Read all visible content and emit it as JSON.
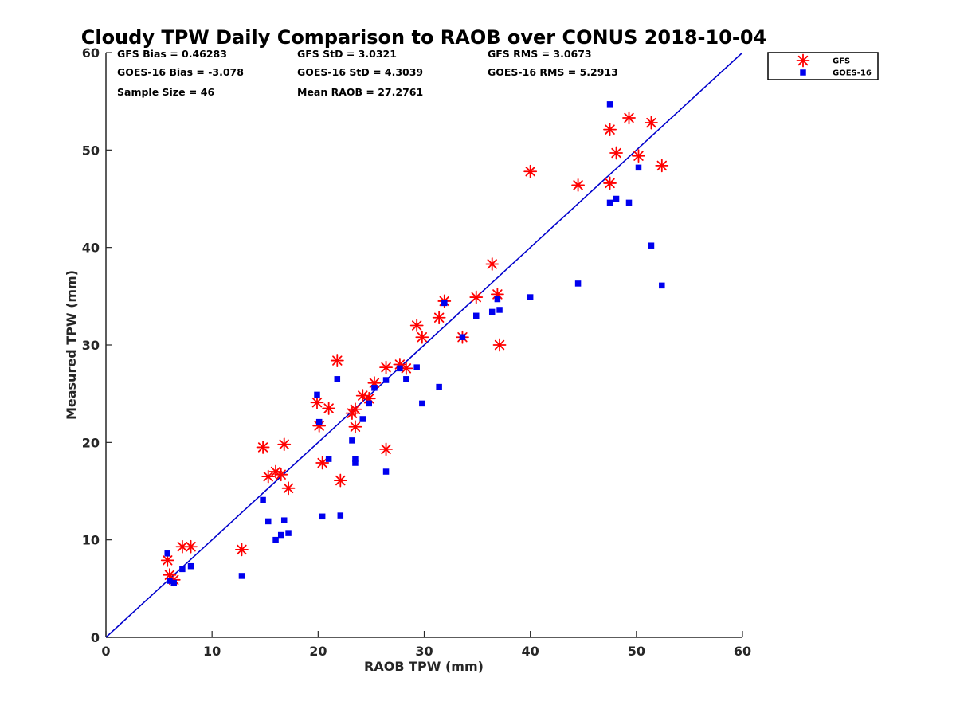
{
  "chart_data": {
    "type": "scatter",
    "title": "Cloudy TPW Daily Comparison to RAOB over CONUS 2018-10-04",
    "xlabel": "RAOB TPW (mm)",
    "ylabel": "Measured TPW (mm)",
    "xlim": [
      0,
      60
    ],
    "ylim": [
      0,
      60
    ],
    "xticks": [
      "0",
      "10",
      "20",
      "30",
      "40",
      "50",
      "60"
    ],
    "yticks": [
      "0",
      "10",
      "20",
      "30",
      "40",
      "50",
      "60"
    ],
    "grid": false,
    "legend_position": "top-right-outside",
    "stats": [
      [
        "GFS Bias = 0.46283",
        "GFS StD = 3.0321",
        "GFS RMS = 3.0673"
      ],
      [
        "GOES-16 Bias = -3.078",
        "GOES-16 StD = 4.3039",
        "GOES-16 RMS = 5.2913"
      ],
      [
        "Sample Size = 46",
        "Mean RAOB = 27.2761",
        ""
      ]
    ],
    "reference_line": {
      "x": [
        0,
        60
      ],
      "y": [
        0,
        60
      ],
      "color": "#0000cc"
    },
    "series": [
      {
        "name": "GFS",
        "marker": "asterisk",
        "color": "#ff0000",
        "x": [
          5.8,
          6.0,
          6.4,
          7.2,
          8.0,
          12.8,
          14.8,
          15.3,
          16.0,
          16.5,
          16.8,
          17.2,
          19.9,
          20.1,
          20.4,
          21.0,
          21.8,
          22.1,
          23.2,
          23.5,
          23.5,
          24.2,
          24.8,
          25.3,
          26.4,
          26.4,
          27.7,
          28.3,
          29.3,
          29.8,
          31.4,
          31.9,
          33.6,
          34.9,
          36.4,
          36.9,
          37.1,
          40.0,
          44.5,
          47.5,
          47.5,
          48.1,
          49.3,
          50.2,
          51.4,
          52.4
        ],
        "y": [
          7.9,
          6.4,
          5.9,
          9.3,
          9.3,
          9.0,
          19.5,
          16.5,
          17.0,
          16.7,
          19.8,
          15.3,
          24.1,
          21.7,
          17.9,
          23.5,
          28.4,
          16.1,
          23.0,
          21.6,
          23.4,
          24.8,
          24.5,
          26.1,
          27.7,
          19.3,
          28.0,
          27.6,
          32.0,
          30.8,
          32.8,
          34.5,
          30.8,
          34.9,
          38.3,
          35.2,
          30.0,
          47.8,
          46.4,
          46.6,
          52.1,
          49.7,
          53.3,
          49.4,
          52.8,
          48.4
        ]
      },
      {
        "name": "GOES-16",
        "marker": "square",
        "color": "#0000ee",
        "x": [
          5.8,
          6.0,
          6.4,
          7.2,
          8.0,
          12.8,
          14.8,
          15.3,
          16.0,
          16.5,
          16.8,
          17.2,
          19.9,
          20.1,
          20.4,
          21.0,
          21.8,
          22.1,
          23.2,
          23.5,
          23.5,
          24.2,
          24.8,
          25.3,
          26.4,
          26.4,
          27.7,
          28.3,
          29.3,
          29.8,
          31.4,
          31.9,
          33.6,
          34.9,
          36.4,
          36.9,
          37.1,
          40.0,
          44.5,
          47.5,
          47.5,
          48.1,
          49.3,
          50.2,
          51.4,
          52.4
        ],
        "y": [
          8.6,
          5.8,
          5.6,
          7.0,
          7.3,
          6.3,
          14.1,
          11.9,
          10.0,
          10.5,
          12.0,
          10.7,
          24.9,
          22.1,
          12.4,
          18.3,
          26.5,
          12.5,
          20.2,
          18.3,
          17.9,
          22.4,
          24.0,
          25.6,
          26.4,
          17.0,
          27.6,
          26.5,
          27.7,
          24.0,
          25.7,
          34.3,
          30.8,
          33.0,
          33.4,
          34.7,
          33.6,
          34.9,
          36.3,
          54.7,
          44.6,
          45.0,
          44.6,
          48.2,
          40.2,
          36.1
        ]
      }
    ]
  }
}
